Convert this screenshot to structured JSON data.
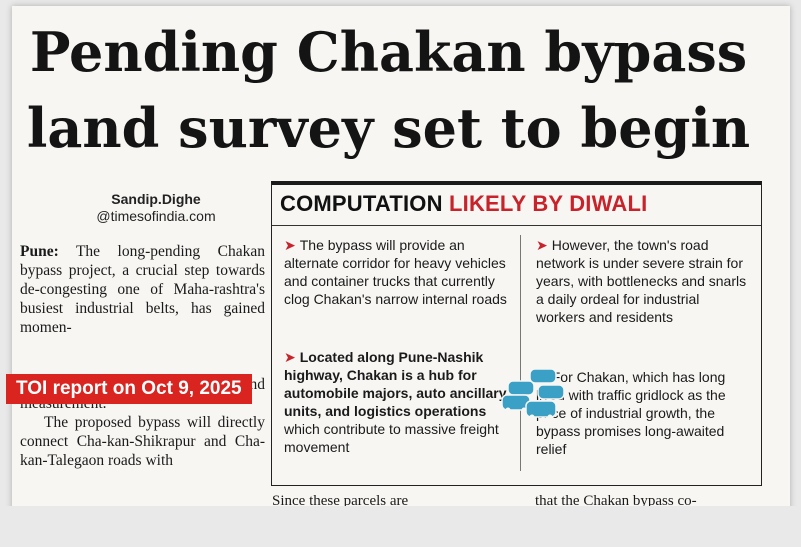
{
  "headline": {
    "line1": "Pending Chakan bypass",
    "line2": "land survey set to begin"
  },
  "byline": {
    "name": "Sandip.Dighe",
    "handle": "@timesofindia.com"
  },
  "body": {
    "p1_lead": "Pune:",
    "p1_text": " The long-pending Chakan bypass project, a crucial step towards de-congesting one of Maha-rashtra's busiest industrial belts, has gained momen-",
    "p1_cont": "Authority (PMRDA) set to initiate land measurement.",
    "p2": "The proposed bypass will directly connect Cha-kan-Shikrapur and Cha-kan-Talegaon roads with"
  },
  "tag": "TOI report on Oct 9, 2025",
  "box": {
    "title_black": "COMPUTATION",
    "title_red": "LIKELY BY DIWALI",
    "b1": "The bypass will provide an alternate corridor for heavy vehicles and container trucks that currently clog Chakan's narrow internal roads",
    "b2_bold": "Located along Pune-Nashik highway, Chakan is a hub for automobile majors, auto ancillary units, and logistics operations",
    "b2_rest": " which contribute to massive freight movement",
    "b3": "However, the town's road network is under severe strain for years, with bottlenecks and snarls a daily ordeal for industrial workers and residents",
    "b4": "For Chakan, which has long lived with traffic gridlock as the price of industrial growth, the bypass promises long-awaited relief"
  },
  "bottom": {
    "left": "Since these parcels are",
    "right": "that the Chakan bypass co-"
  },
  "colors": {
    "accent": "#c8232b",
    "tag_bg": "#d9241f",
    "cars": "#3aa0c6"
  },
  "icons": {
    "box_illustration": "traffic-cars-icon"
  }
}
